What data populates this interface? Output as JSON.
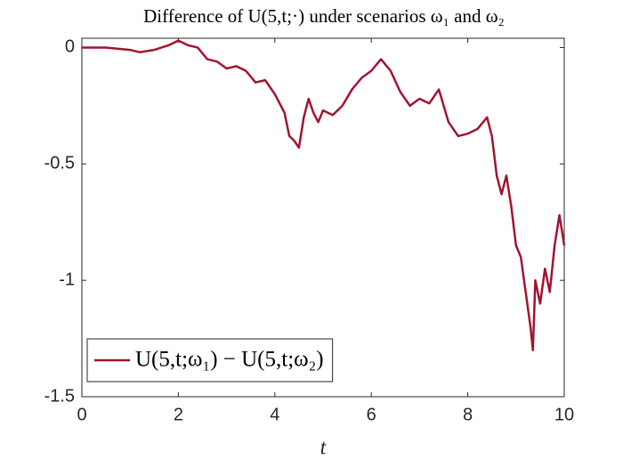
{
  "chart_data": {
    "type": "line",
    "title": "Difference of U(5,t;·) under scenarios ω₁ and ω₂",
    "x_label": "t",
    "x": [
      0,
      0.5,
      1.0,
      1.2,
      1.5,
      1.8,
      2.0,
      2.2,
      2.4,
      2.6,
      2.8,
      3.0,
      3.2,
      3.4,
      3.6,
      3.8,
      4.0,
      4.2,
      4.3,
      4.4,
      4.5,
      4.6,
      4.7,
      4.8,
      4.9,
      5.0,
      5.2,
      5.4,
      5.6,
      5.8,
      6.0,
      6.2,
      6.4,
      6.6,
      6.8,
      7.0,
      7.2,
      7.4,
      7.6,
      7.8,
      8.0,
      8.2,
      8.4,
      8.5,
      8.6,
      8.7,
      8.8,
      8.9,
      9.0,
      9.1,
      9.2,
      9.3,
      9.35,
      9.4,
      9.5,
      9.6,
      9.7,
      9.8,
      9.9,
      10.0
    ],
    "series": [
      {
        "name": "U(5,t;ω₁) − U(5,t;ω₂)",
        "color": "#a2142f",
        "values": [
          0,
          0,
          -0.01,
          -0.02,
          -0.01,
          0.01,
          0.03,
          0.01,
          0.0,
          -0.05,
          -0.06,
          -0.09,
          -0.08,
          -0.1,
          -0.15,
          -0.14,
          -0.2,
          -0.28,
          -0.38,
          -0.4,
          -0.43,
          -0.3,
          -0.22,
          -0.28,
          -0.32,
          -0.27,
          -0.29,
          -0.25,
          -0.18,
          -0.13,
          -0.1,
          -0.05,
          -0.1,
          -0.19,
          -0.25,
          -0.22,
          -0.24,
          -0.18,
          -0.32,
          -0.38,
          -0.37,
          -0.35,
          -0.3,
          -0.38,
          -0.55,
          -0.63,
          -0.55,
          -0.68,
          -0.85,
          -0.9,
          -1.05,
          -1.2,
          -1.3,
          -1.0,
          -1.1,
          -0.95,
          -1.05,
          -0.85,
          -0.72,
          -0.85
        ]
      }
    ],
    "xlim": [
      0,
      10
    ],
    "xticks": [
      0,
      2,
      4,
      6,
      8,
      10
    ],
    "ylim": [
      -1.5,
      0.04
    ],
    "yticks": [
      0,
      -0.5,
      -1,
      -1.5
    ],
    "legend": "lower left"
  }
}
